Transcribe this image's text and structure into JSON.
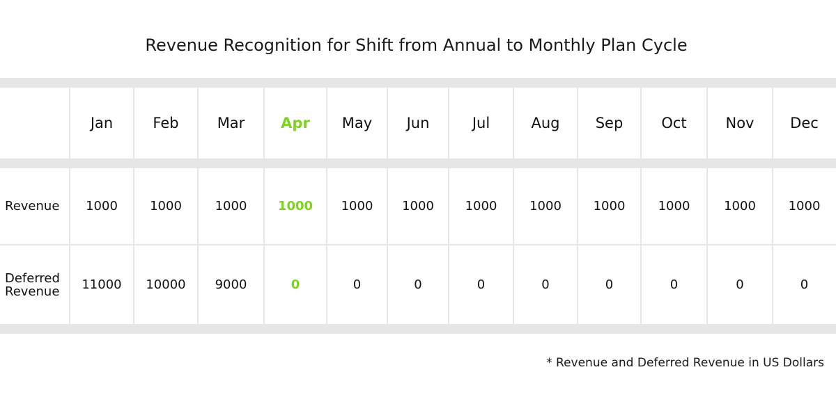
{
  "chart_data": {
    "type": "table",
    "title": "Revenue Recognition for Shift from Annual to Monthly Plan Cycle",
    "columns": [
      "Jan",
      "Feb",
      "Mar",
      "Apr",
      "May",
      "Jun",
      "Jul",
      "Aug",
      "Sep",
      "Oct",
      "Nov",
      "Dec"
    ],
    "highlight_column": "Apr",
    "highlight_color": "#7ed321",
    "rows": [
      {
        "label": "Revenue",
        "values": [
          "1000",
          "1000",
          "1000",
          "1000",
          "1000",
          "1000",
          "1000",
          "1000",
          "1000",
          "1000",
          "1000",
          "1000"
        ]
      },
      {
        "label_lines": [
          "Deferred",
          "Revenue"
        ],
        "values": [
          "11000",
          "10000",
          "9000",
          "0",
          "0",
          "0",
          "0",
          "0",
          "0",
          "0",
          "0",
          "0"
        ]
      }
    ],
    "footnote": "* Revenue and Deferred Revenue in US Dollars"
  }
}
